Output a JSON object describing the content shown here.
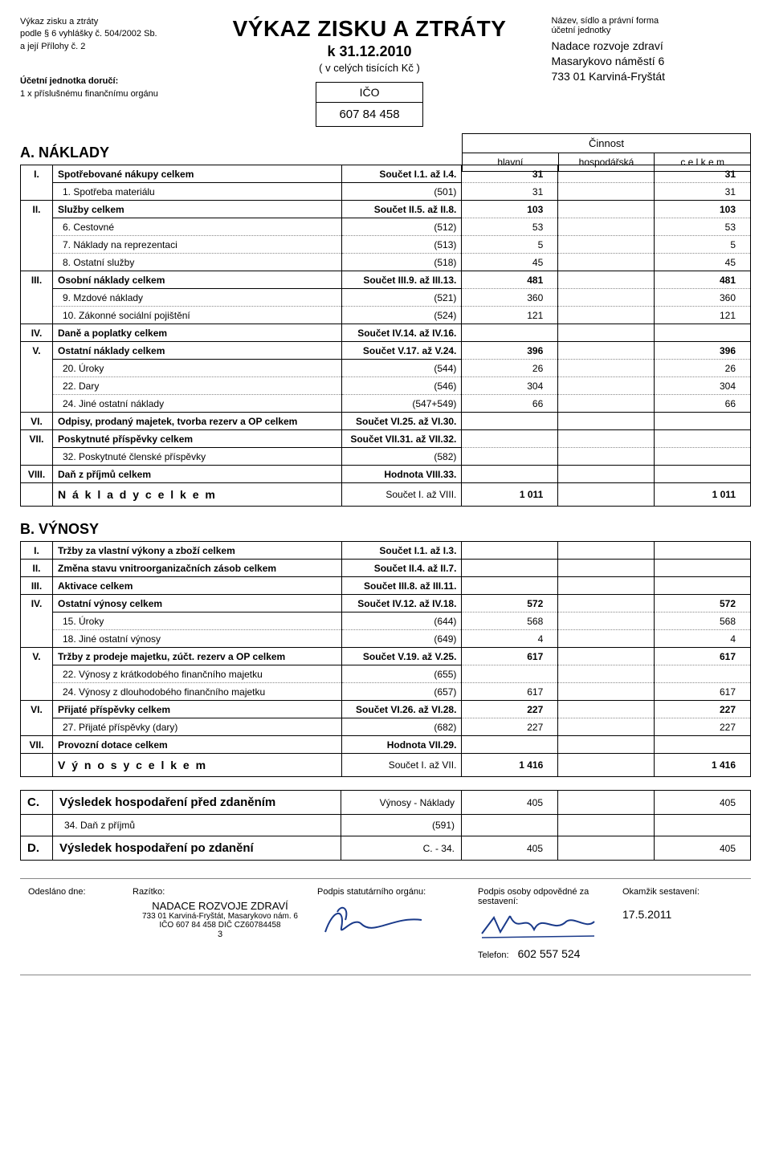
{
  "header": {
    "left_line1": "Výkaz zisku a ztráty",
    "left_line2": "podle § 6 vyhlášky č. 504/2002 Sb.",
    "left_line3": "a její Přílohy č. 2",
    "left_line4": "Účetní jednotka doručí:",
    "left_line5": "1 x příslušnému finančnímu orgánu",
    "title_main": "VÝKAZ ZISKU A ZTRÁTY",
    "title_sub": "k 31.12.2010",
    "title_unit": "( v celých tisících Kč )",
    "right_line1": "Název, sídlo a právní forma",
    "right_line2": "účetní jednotky",
    "org_name": "Nadace rozvoje zdraví",
    "org_addr1": "Masarykovo náměstí 6",
    "org_addr2": "733 01  Karviná-Fryštát",
    "ico_label": "IČO",
    "ico_value": "607 84 458"
  },
  "activity": {
    "title": "Činnost",
    "col1": "hlavní",
    "col2": "hospodářská",
    "col3": "c e l k e m"
  },
  "sections": {
    "a_title": "A.  NÁKLADY",
    "b_title": "B.  VÝNOSY"
  },
  "naklady": {
    "rows": [
      {
        "type": "group",
        "num": "I.",
        "desc": "Spotřebované nákupy celkem",
        "ref": "Součet I.1. až I.4.",
        "v1": "31",
        "v2": "",
        "v3": "31"
      },
      {
        "type": "sub",
        "num": "",
        "desc": "1. Spotřeba materiálu",
        "ref": "(501)",
        "v1": "31",
        "v2": "",
        "v3": "31",
        "first": true
      },
      {
        "type": "group",
        "num": "II.",
        "desc": "Služby celkem",
        "ref": "Součet II.5. až II.8.",
        "v1": "103",
        "v2": "",
        "v3": "103"
      },
      {
        "type": "sub",
        "num": "",
        "desc": "6. Cestovné",
        "ref": "(512)",
        "v1": "53",
        "v2": "",
        "v3": "53",
        "first": true
      },
      {
        "type": "sub",
        "num": "",
        "desc": "7. Náklady na reprezentaci",
        "ref": "(513)",
        "v1": "5",
        "v2": "",
        "v3": "5"
      },
      {
        "type": "sub",
        "num": "",
        "desc": "8. Ostatní služby",
        "ref": "(518)",
        "v1": "45",
        "v2": "",
        "v3": "45"
      },
      {
        "type": "group",
        "num": "III.",
        "desc": "Osobní náklady celkem",
        "ref": "Součet III.9. až III.13.",
        "v1": "481",
        "v2": "",
        "v3": "481"
      },
      {
        "type": "sub",
        "num": "",
        "desc": "9. Mzdové náklady",
        "ref": "(521)",
        "v1": "360",
        "v2": "",
        "v3": "360",
        "first": true
      },
      {
        "type": "sub",
        "num": "",
        "desc": "10. Zákonné sociální pojištění",
        "ref": "(524)",
        "v1": "121",
        "v2": "",
        "v3": "121"
      },
      {
        "type": "group",
        "num": "IV.",
        "desc": "Daně a poplatky celkem",
        "ref": "Součet IV.14. až IV.16.",
        "v1": "",
        "v2": "",
        "v3": ""
      },
      {
        "type": "group",
        "num": "V.",
        "desc": "Ostatní náklady celkem",
        "ref": "Součet V.17. až V.24.",
        "v1": "396",
        "v2": "",
        "v3": "396"
      },
      {
        "type": "sub",
        "num": "",
        "desc": "20. Úroky",
        "ref": "(544)",
        "v1": "26",
        "v2": "",
        "v3": "26",
        "first": true
      },
      {
        "type": "sub",
        "num": "",
        "desc": "22. Dary",
        "ref": "(546)",
        "v1": "304",
        "v2": "",
        "v3": "304"
      },
      {
        "type": "sub",
        "num": "",
        "desc": "24. Jiné ostatní náklady",
        "ref": "(547+549)",
        "v1": "66",
        "v2": "",
        "v3": "66"
      },
      {
        "type": "group",
        "num": "VI.",
        "desc": "Odpisy, prodaný majetek, tvorba rezerv a OP celkem",
        "ref": "Součet VI.25. až VI.30.",
        "v1": "",
        "v2": "",
        "v3": ""
      },
      {
        "type": "group",
        "num": "VII.",
        "desc": "Poskytnuté příspěvky celkem",
        "ref": "Součet VII.31. až VII.32.",
        "v1": "",
        "v2": "",
        "v3": ""
      },
      {
        "type": "sub",
        "num": "",
        "desc": "32. Poskytnuté členské příspěvky",
        "ref": "(582)",
        "v1": "",
        "v2": "",
        "v3": "",
        "first": true
      },
      {
        "type": "group",
        "num": "VIII.",
        "desc": "Daň z příjmů celkem",
        "ref": "Hodnota VIII.33.",
        "v1": "",
        "v2": "",
        "v3": ""
      }
    ],
    "total": {
      "desc": "N á k l a d y   c e l k e m",
      "ref": "Součet I. až VIII.",
      "v1": "1 011",
      "v2": "",
      "v3": "1 011"
    }
  },
  "vynosy": {
    "rows": [
      {
        "type": "group",
        "num": "I.",
        "desc": "Tržby za vlastní výkony a zboží celkem",
        "ref": "Součet I.1. až I.3.",
        "v1": "",
        "v2": "",
        "v3": ""
      },
      {
        "type": "group",
        "num": "II.",
        "desc": "Změna stavu vnitroorganizačních zásob celkem",
        "ref": "Součet II.4. až II.7.",
        "v1": "",
        "v2": "",
        "v3": ""
      },
      {
        "type": "group",
        "num": "III.",
        "desc": "Aktivace celkem",
        "ref": "Součet III.8. až III.11.",
        "v1": "",
        "v2": "",
        "v3": ""
      },
      {
        "type": "group",
        "num": "IV.",
        "desc": "Ostatní výnosy celkem",
        "ref": "Součet IV.12. až IV.18.",
        "v1": "572",
        "v2": "",
        "v3": "572"
      },
      {
        "type": "sub",
        "num": "",
        "desc": "15. Úroky",
        "ref": "(644)",
        "v1": "568",
        "v2": "",
        "v3": "568",
        "first": true
      },
      {
        "type": "sub",
        "num": "",
        "desc": "18. Jiné ostatní výnosy",
        "ref": "(649)",
        "v1": "4",
        "v2": "",
        "v3": "4"
      },
      {
        "type": "group",
        "num": "V.",
        "desc": "Tržby z prodeje majetku, zúčt. rezerv a OP celkem",
        "ref": "Součet V.19. až V.25.",
        "v1": "617",
        "v2": "",
        "v3": "617"
      },
      {
        "type": "sub",
        "num": "",
        "desc": "22. Výnosy z krátkodobého finančního majetku",
        "ref": "(655)",
        "v1": "",
        "v2": "",
        "v3": "",
        "first": true
      },
      {
        "type": "sub",
        "num": "",
        "desc": "24. Výnosy z dlouhodobého finančního majetku",
        "ref": "(657)",
        "v1": "617",
        "v2": "",
        "v3": "617"
      },
      {
        "type": "group",
        "num": "VI.",
        "desc": "Přijaté příspěvky celkem",
        "ref": "Součet VI.26. až VI.28.",
        "v1": "227",
        "v2": "",
        "v3": "227"
      },
      {
        "type": "sub",
        "num": "",
        "desc": "27. Přijaté příspěvky (dary)",
        "ref": "(682)",
        "v1": "227",
        "v2": "",
        "v3": "227",
        "first": true
      },
      {
        "type": "group",
        "num": "VII.",
        "desc": "Provozní dotace celkem",
        "ref": "Hodnota VII.29.",
        "v1": "",
        "v2": "",
        "v3": ""
      }
    ],
    "total": {
      "desc": "V ý n o s y   c e l k e m",
      "ref": "Součet I. až VII.",
      "v1": "1 416",
      "v2": "",
      "v3": "1 416"
    }
  },
  "results": {
    "c_letter": "C.",
    "c_desc": "Výsledek hospodaření před zdaněním",
    "c_ref": "Výnosy - Náklady",
    "c_v1": "405",
    "c_v2": "",
    "c_v3": "405",
    "tax_desc": "34. Daň z příjmů",
    "tax_ref": "(591)",
    "d_letter": "D.",
    "d_desc": "Výsledek hospodaření po zdanění",
    "d_ref": "C. - 34.",
    "d_v1": "405",
    "d_v2": "",
    "d_v3": "405"
  },
  "footer": {
    "sent_label": "Odesláno dne:",
    "stamp_label": "Razítko:",
    "stamp_org": "NADACE ROZVOJE ZDRAVÍ",
    "stamp_addr": "733 01 Karviná-Fryštát, Masarykovo nám. 6",
    "stamp_ico": "IČO 607 84 458      DIČ  CZ60784458",
    "stamp_num": "3",
    "sign1_label": "Podpis statutárního orgánu:",
    "sign2_label": "Podpis osoby odpovědné za sestavení:",
    "moment_label": "Okamžik sestavení:",
    "moment_value": "17.5.2011",
    "tel_label": "Telefon:",
    "tel_value": "602 557 524"
  }
}
